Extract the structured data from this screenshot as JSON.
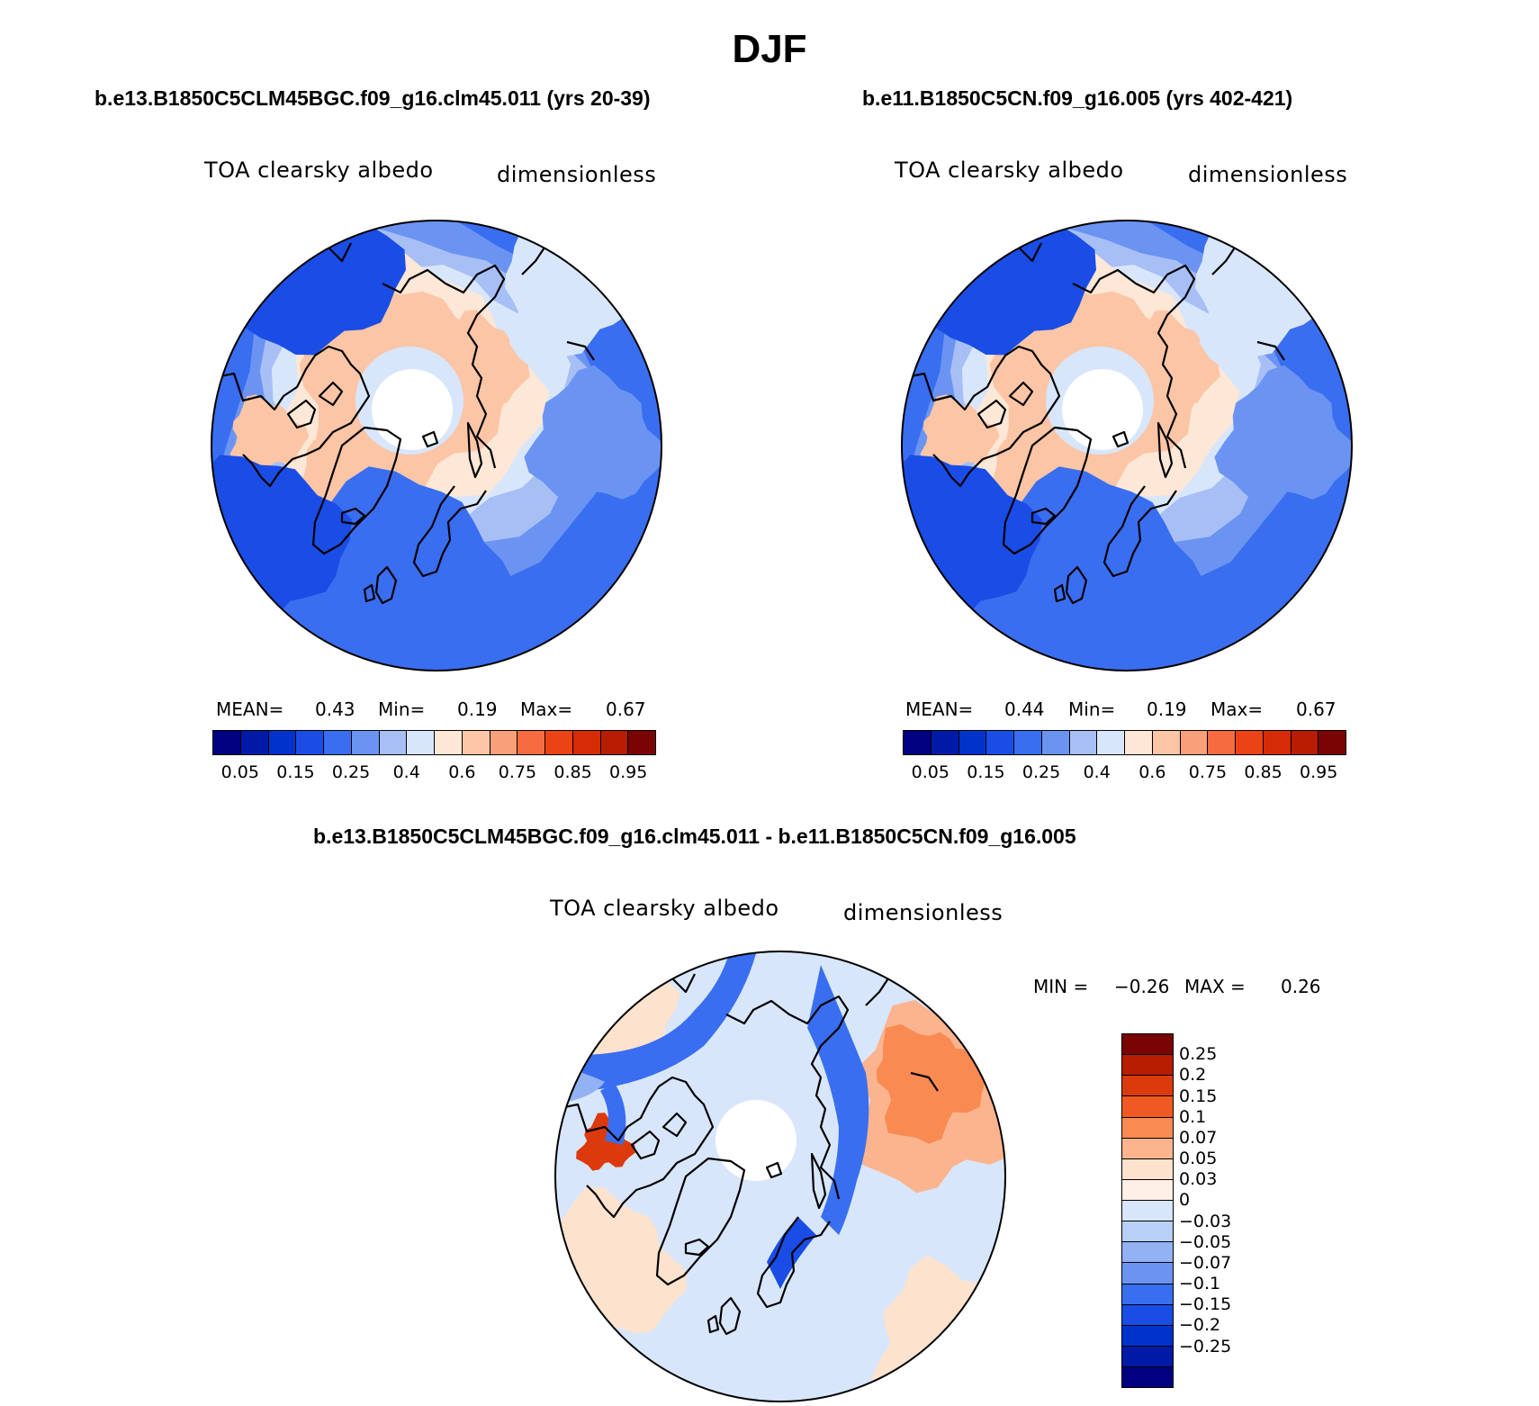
{
  "title": "DJF",
  "panels": [
    {
      "case": "b.e13.B1850C5CLM45BGC.f09_g16.clm45.011 (yrs 20-39)",
      "variable": "TOA clearsky albedo",
      "units": "dimensionless",
      "stats": {
        "mean_label": "MEAN=",
        "mean": "0.43",
        "min_label": "Min=",
        "min": "0.19",
        "max_label": "Max=",
        "max": "0.67"
      }
    },
    {
      "case": "b.e11.B1850C5CN.f09_g16.005 (yrs 402-421)",
      "variable": "TOA clearsky albedo",
      "units": "dimensionless",
      "stats": {
        "mean_label": "MEAN=",
        "mean": "0.44",
        "min_label": "Min=",
        "min": "0.19",
        "max_label": "Max=",
        "max": "0.67"
      }
    }
  ],
  "colorbar": {
    "colors": [
      "#000080",
      "#001aa8",
      "#0033cc",
      "#1a4de6",
      "#3a6ef0",
      "#6b94f2",
      "#a7bff5",
      "#d8e6fb",
      "#fde7d6",
      "#fbc5a6",
      "#f9a07a",
      "#f46c40",
      "#ec4316",
      "#d72b05",
      "#b81d02",
      "#7a0404"
    ],
    "tick_labels": [
      "0.05",
      "0.15",
      "0.25",
      "0.4",
      "0.6",
      "0.75",
      "0.85",
      "0.95"
    ]
  },
  "difference": {
    "title": "b.e13.B1850C5CLM45BGC.f09_g16.clm45.011 - b.e11.B1850C5CN.f09_g16.005",
    "variable": "TOA clearsky albedo",
    "units": "dimensionless",
    "min_label": "MIN =",
    "min": "−0.26",
    "max_label": "MAX =",
    "max": "0.26",
    "colors": [
      "#7a0404",
      "#b81d02",
      "#dc3a0c",
      "#f05a22",
      "#f98a52",
      "#fbb48e",
      "#fde2cd",
      "#fef0e6",
      "#d8e6fb",
      "#b8cff7",
      "#93b2f3",
      "#6b94f2",
      "#3a6ef0",
      "#1a4de6",
      "#0033cc",
      "#001aa8",
      "#000080"
    ],
    "tick_labels": [
      "0.25",
      "0.2",
      "0.15",
      "0.1",
      "0.07",
      "0.05",
      "0.03",
      "0",
      "−0.03",
      "−0.05",
      "−0.07",
      "−0.1",
      "−0.15",
      "−0.2",
      "−0.25"
    ]
  },
  "chart_data": [
    {
      "type": "heatmap",
      "title": "b.e13.B1850C5CLM45BGC.f09_g16.clm45.011 (yrs 20-39)",
      "subtitle": "TOA clearsky albedo",
      "units": "dimensionless",
      "projection": "north polar stereographic",
      "mean": 0.43,
      "min": 0.19,
      "max": 0.67,
      "levels": [
        0.05,
        0.1,
        0.15,
        0.2,
        0.25,
        0.3,
        0.35,
        0.4,
        0.5,
        0.6,
        0.65,
        0.7,
        0.75,
        0.8,
        0.85,
        0.9,
        0.95
      ]
    },
    {
      "type": "heatmap",
      "title": "b.e11.B1850C5CN.f09_g16.005 (yrs 402-421)",
      "subtitle": "TOA clearsky albedo",
      "units": "dimensionless",
      "projection": "north polar stereographic",
      "mean": 0.44,
      "min": 0.19,
      "max": 0.67,
      "levels": [
        0.05,
        0.1,
        0.15,
        0.2,
        0.25,
        0.3,
        0.35,
        0.4,
        0.5,
        0.6,
        0.65,
        0.7,
        0.75,
        0.8,
        0.85,
        0.9,
        0.95
      ]
    },
    {
      "type": "heatmap",
      "title": "b.e13.B1850C5CLM45BGC.f09_g16.clm45.011 - b.e11.B1850C5CN.f09_g16.005",
      "subtitle": "TOA clearsky albedo",
      "units": "dimensionless",
      "projection": "north polar stereographic",
      "min": -0.26,
      "max": 0.26,
      "levels": [
        0.25,
        0.2,
        0.15,
        0.1,
        0.07,
        0.05,
        0.03,
        0,
        -0.03,
        -0.05,
        -0.07,
        -0.1,
        -0.15,
        -0.2,
        -0.25
      ]
    }
  ]
}
